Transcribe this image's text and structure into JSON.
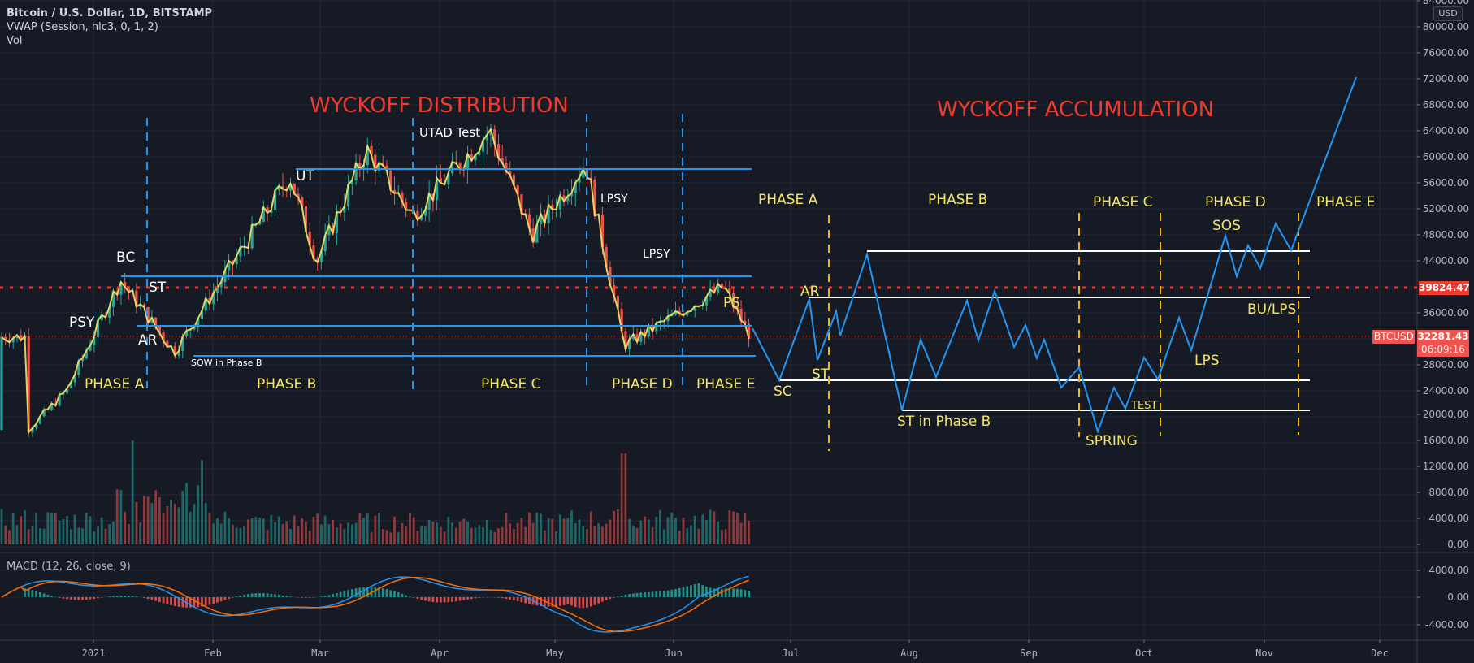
{
  "header": {
    "symbol_title": "Bitcoin / U.S. Dollar, 1D, BITSTAMP",
    "indicator_vwap": "VWAP (Session, hlc3, 0, 1, 2)",
    "indicator_vol": "Vol",
    "indicator_macd": "MACD (12, 26, close, 9)"
  },
  "price_axis": {
    "currency": "USD",
    "ticks": [
      "84000.00",
      "80000.00",
      "76000.00",
      "72000.00",
      "68000.00",
      "64000.00",
      "60000.00",
      "56000.00",
      "52000.00",
      "48000.00",
      "44000.00",
      "36000.00",
      "28000.00",
      "24000.00",
      "20000.00",
      "16000.00",
      "12000.00",
      "8000.00",
      "4000.00",
      "0.00"
    ],
    "alert_price": "39824.47",
    "current_symbol": "BTCUSD",
    "current_price": "32281.43",
    "countdown": "06:09:16"
  },
  "macd_axis": {
    "ticks": [
      "4000.00",
      "0.00",
      "-4000.00"
    ]
  },
  "time_axis": {
    "ticks": [
      "2021",
      "Feb",
      "Mar",
      "Apr",
      "May",
      "Jun",
      "Jul",
      "Aug",
      "Sep",
      "Oct",
      "Nov",
      "Dec"
    ]
  },
  "annotations": {
    "distribution_title": "WYCKOFF DISTRIBUTION",
    "accumulation_title": "WYCKOFF ACCUMULATION",
    "distribution_labels": {
      "psy": "PSY",
      "bc": "BC",
      "st": "ST",
      "ar": "AR",
      "ut": "UT",
      "utad": "UTAD Test",
      "sow": "SOW in Phase B",
      "lpsy1": "LPSY",
      "lpsy2": "LPSY",
      "ps": "PS"
    },
    "distribution_phases": [
      "PHASE A",
      "PHASE B",
      "PHASE C",
      "PHASE D",
      "PHASE E"
    ],
    "accumulation_phases": [
      "PHASE A",
      "PHASE B",
      "PHASE C",
      "PHASE D",
      "PHASE E"
    ],
    "accumulation_labels": {
      "sc": "SC",
      "ar": "AR",
      "st": "ST",
      "st_b": "ST in Phase B",
      "spring": "SPRING",
      "test": "TEST",
      "lps": "LPS",
      "sos": "SOS",
      "bu_lps": "BU/LPS"
    }
  },
  "colors": {
    "background": "#161a25",
    "up_candle": "#26a69a",
    "down_candle": "#ef5350",
    "vwap": "#f5e663",
    "range_lines": "#2196f3",
    "accumulation_lines": "#ffffff",
    "phase_dividers_dist": "#2196f3",
    "phase_dividers_acc": "#f5b800",
    "title_red": "#f23a2f",
    "macd_line": "#2196f3",
    "signal_line": "#ff6d00"
  },
  "chart_data": {
    "type": "candlestick",
    "title": "Bitcoin / U.S. Dollar, 1D, BITSTAMP",
    "xlabel": "",
    "ylabel": "USD",
    "ylim": [
      0,
      84000
    ],
    "x": [
      "2021",
      "Feb",
      "Mar",
      "Apr",
      "May",
      "Jun",
      "Jul",
      "Aug",
      "Sep",
      "Oct",
      "Nov",
      "Dec"
    ],
    "price_path_approx": [
      {
        "date": "2020-12-15",
        "price": 18000
      },
      {
        "date": "2020-12-25",
        "price": 24000
      },
      {
        "date": "2021-01-08",
        "price": 41000
      },
      {
        "date": "2021-01-22",
        "price": 30000
      },
      {
        "date": "2021-02-21",
        "price": 57000
      },
      {
        "date": "2021-02-28",
        "price": 44000
      },
      {
        "date": "2021-03-13",
        "price": 61000
      },
      {
        "date": "2021-03-25",
        "price": 51000
      },
      {
        "date": "2021-04-14",
        "price": 64000
      },
      {
        "date": "2021-04-25",
        "price": 48000
      },
      {
        "date": "2021-05-09",
        "price": 59000
      },
      {
        "date": "2021-05-19",
        "price": 31000
      },
      {
        "date": "2021-06-14",
        "price": 40000
      },
      {
        "date": "2021-06-21",
        "price": 32281
      }
    ],
    "distribution_levels": {
      "UT_resistance": 58000,
      "BC_top": 41500,
      "AR_mid": 34000,
      "SOW_low": 29000
    },
    "accumulation_projection": {
      "points": [
        [
          "2021-06-22",
          32000
        ],
        [
          "2021-06-28",
          25000
        ],
        [
          "2021-07-06",
          38500
        ],
        [
          "2021-07-09",
          29000
        ],
        [
          "2021-07-13",
          36000
        ],
        [
          "2021-07-15",
          32000
        ],
        [
          "2021-07-22",
          45000
        ],
        [
          "2021-08-01",
          21000
        ],
        [
          "2021-08-06",
          31500
        ],
        [
          "2021-08-11",
          26000
        ],
        [
          "2021-08-20",
          37500
        ],
        [
          "2021-08-24",
          31500
        ],
        [
          "2021-08-28",
          39000
        ],
        [
          "2021-09-03",
          30000
        ],
        [
          "2021-09-07",
          33500
        ],
        [
          "2021-09-10",
          28500
        ],
        [
          "2021-09-16",
          24500
        ],
        [
          "2021-09-20",
          27000
        ],
        [
          "2021-09-24",
          17500
        ],
        [
          "2021-09-28",
          24000
        ],
        [
          "2021-10-02",
          21000
        ],
        [
          "2021-10-07",
          29000
        ],
        [
          "2021-10-10",
          25500
        ],
        [
          "2021-10-17",
          35000
        ],
        [
          "2021-10-21",
          30000
        ],
        [
          "2021-10-30",
          47500
        ],
        [
          "2021-11-02",
          41500
        ],
        [
          "2021-11-05",
          46500
        ],
        [
          "2021-11-08",
          43000
        ],
        [
          "2021-11-12",
          50000
        ],
        [
          "2021-11-16",
          46000
        ],
        [
          "2021-12-01",
          72500
        ]
      ],
      "levels": {
        "top": 45500,
        "ar": 38500,
        "sc": 25500,
        "st_b": 21000
      }
    },
    "alert_line": 39824.47,
    "last_price": 32281.43,
    "volume": {
      "ylim": [
        0,
        16000
      ],
      "note": "daily volume bars, peak ~16000 mid-Jan and mid-May"
    },
    "macd": {
      "params": "12, 26, close, 9",
      "ylim": [
        -6000,
        6000
      ],
      "range_observed": [
        -5000,
        5000
      ]
    }
  }
}
